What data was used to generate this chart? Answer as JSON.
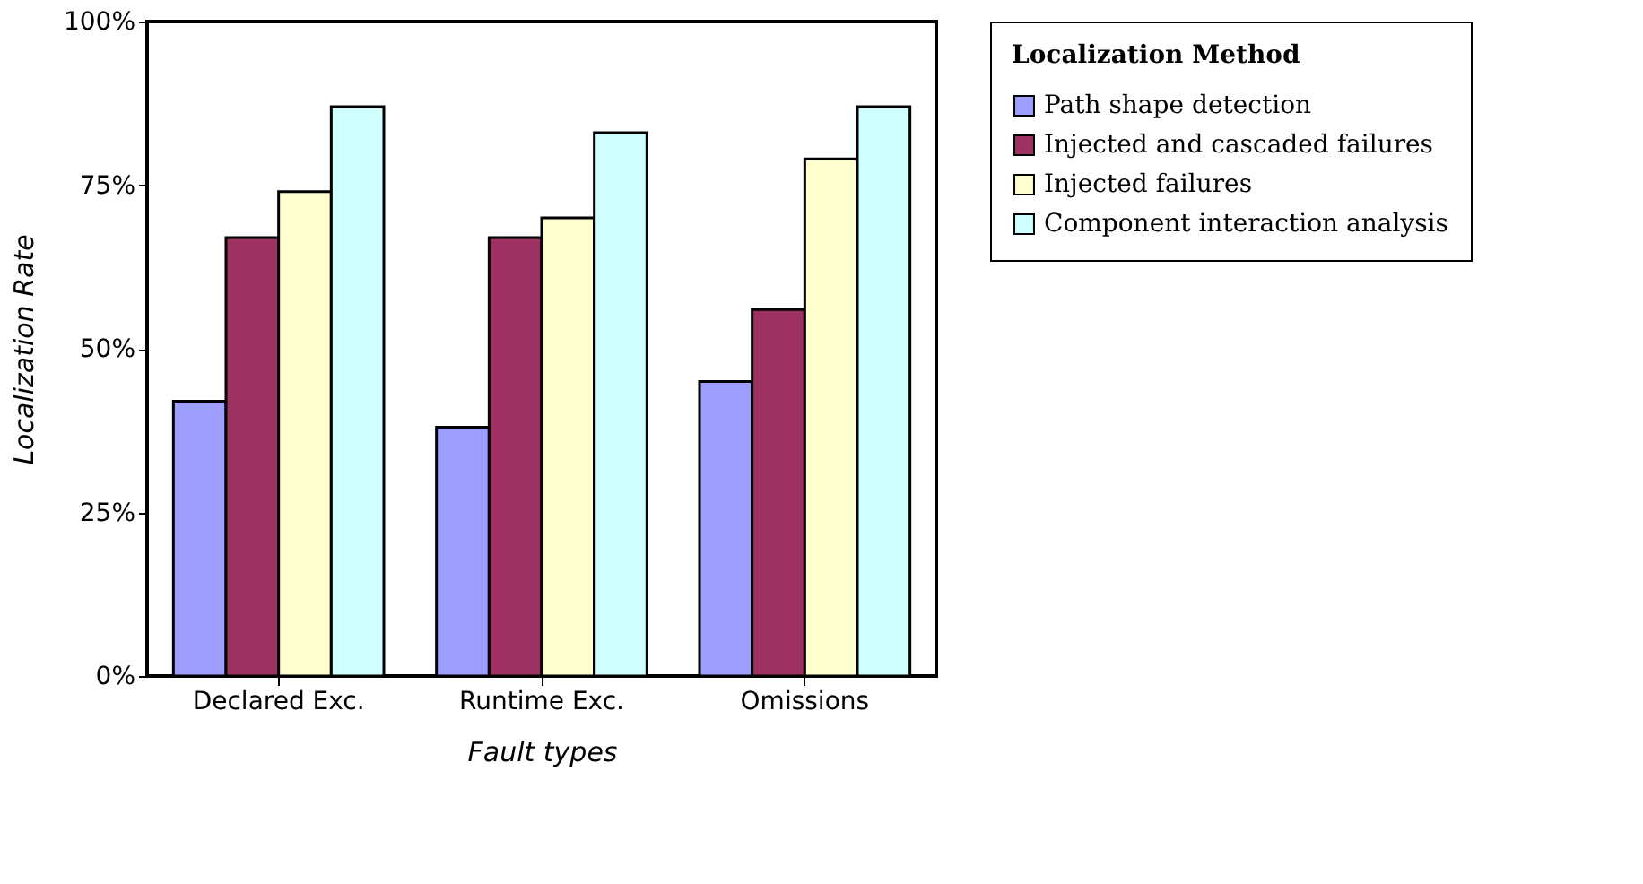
{
  "chart_data": {
    "type": "bar",
    "xlabel": "Fault types",
    "ylabel": "Localization Rate",
    "legend_title": "Localization Method",
    "categories": [
      "Declared Exc.",
      "Runtime Exc.",
      "Omissions"
    ],
    "series": [
      {
        "name": "Path shape detection",
        "color": "#9e9eff",
        "values": [
          42,
          38,
          45
        ]
      },
      {
        "name": "Injected and cascaded failures",
        "color": "#9c3162",
        "values": [
          67,
          67,
          56
        ]
      },
      {
        "name": "Injected failures",
        "color": "#ffffcf",
        "values": [
          74,
          70,
          79
        ]
      },
      {
        "name": "Component interaction analysis",
        "color": "#cfffff",
        "values": [
          87,
          83,
          87
        ]
      }
    ],
    "ylim": [
      0,
      100
    ],
    "yticks": [
      {
        "value": 0,
        "label": "0%"
      },
      {
        "value": 25,
        "label": "25%"
      },
      {
        "value": 50,
        "label": "50%"
      },
      {
        "value": 75,
        "label": "75%"
      },
      {
        "value": 100,
        "label": "100%"
      }
    ],
    "grid": false,
    "legend": "right"
  }
}
